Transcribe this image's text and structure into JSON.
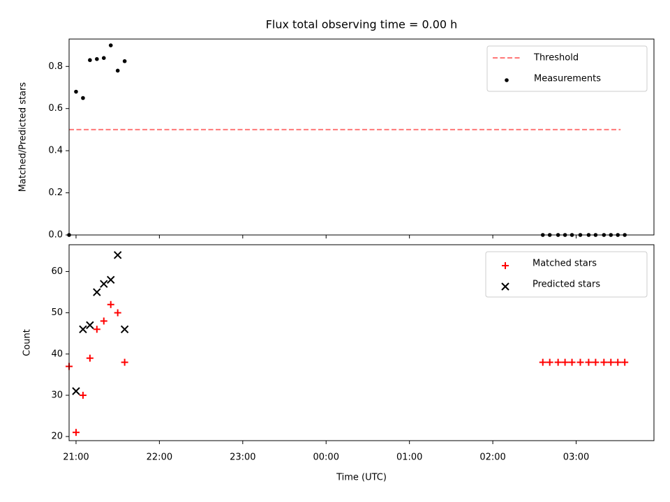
{
  "chart_data": [
    {
      "type": "scatter",
      "title": "Flux total observing time = 0.00 h",
      "xlabel": "",
      "ylabel": "Matched/Predicted stars",
      "ylim": [
        0,
        0.93
      ],
      "yticks": [
        0.0,
        0.2,
        0.4,
        0.6,
        0.8
      ],
      "ytick_labels": [
        "0.0",
        "0.2",
        "0.4",
        "0.6",
        "0.8"
      ],
      "xlim": [
        "20:55",
        "03:56"
      ],
      "grid": false,
      "legend_position": "top-right",
      "series": [
        {
          "name": "Threshold",
          "style": "dashed-line",
          "color": "#ff7777",
          "x": [
            "20:55",
            "03:32"
          ],
          "y": [
            0.5,
            0.5
          ]
        },
        {
          "name": "Measurements",
          "style": "dot",
          "color": "#000000",
          "x": [
            "20:55",
            "21:00",
            "21:05",
            "21:10",
            "21:15",
            "21:20",
            "21:25",
            "21:30",
            "21:35",
            "02:36",
            "02:41",
            "02:47",
            "02:52",
            "02:57",
            "03:03",
            "03:09",
            "03:14",
            "03:20",
            "03:25",
            "03:30",
            "03:35"
          ],
          "y": [
            0.0,
            0.68,
            0.65,
            0.83,
            0.835,
            0.84,
            0.9,
            0.78,
            0.825,
            0,
            0,
            0,
            0,
            0,
            0,
            0,
            0,
            0,
            0,
            0,
            0
          ]
        }
      ]
    },
    {
      "type": "scatter",
      "title": "",
      "xlabel": "Time (UTC)",
      "ylabel": "Count",
      "ylim": [
        19,
        66.5
      ],
      "yticks": [
        20,
        30,
        40,
        50,
        60
      ],
      "ytick_labels": [
        "20",
        "30",
        "40",
        "50",
        "60"
      ],
      "xlim": [
        "20:55",
        "03:56"
      ],
      "xticks": [
        "21:00",
        "22:00",
        "23:00",
        "00:00",
        "01:00",
        "02:00",
        "03:00"
      ],
      "xtick_labels": [
        "21:00",
        "22:00",
        "23:00",
        "00:00",
        "01:00",
        "02:00",
        "03:00"
      ],
      "grid": false,
      "legend_position": "top-right",
      "series": [
        {
          "name": "Matched stars",
          "style": "plus",
          "color": "#ff0000",
          "x": [
            "20:55",
            "21:00",
            "21:05",
            "21:10",
            "21:15",
            "21:20",
            "21:25",
            "21:30",
            "21:35",
            "02:36",
            "02:41",
            "02:47",
            "02:52",
            "02:57",
            "03:03",
            "03:09",
            "03:14",
            "03:20",
            "03:25",
            "03:30",
            "03:35"
          ],
          "y": [
            37,
            21,
            30,
            39,
            46,
            48,
            52,
            50,
            38,
            38,
            38,
            38,
            38,
            38,
            38,
            38,
            38,
            38,
            38,
            38,
            38
          ]
        },
        {
          "name": "Predicted stars",
          "style": "x",
          "color": "#000000",
          "x": [
            "21:00",
            "21:05",
            "21:10",
            "21:15",
            "21:20",
            "21:25",
            "21:30",
            "21:35"
          ],
          "y": [
            31,
            46,
            47,
            55,
            57,
            58,
            64,
            46
          ]
        }
      ]
    }
  ]
}
